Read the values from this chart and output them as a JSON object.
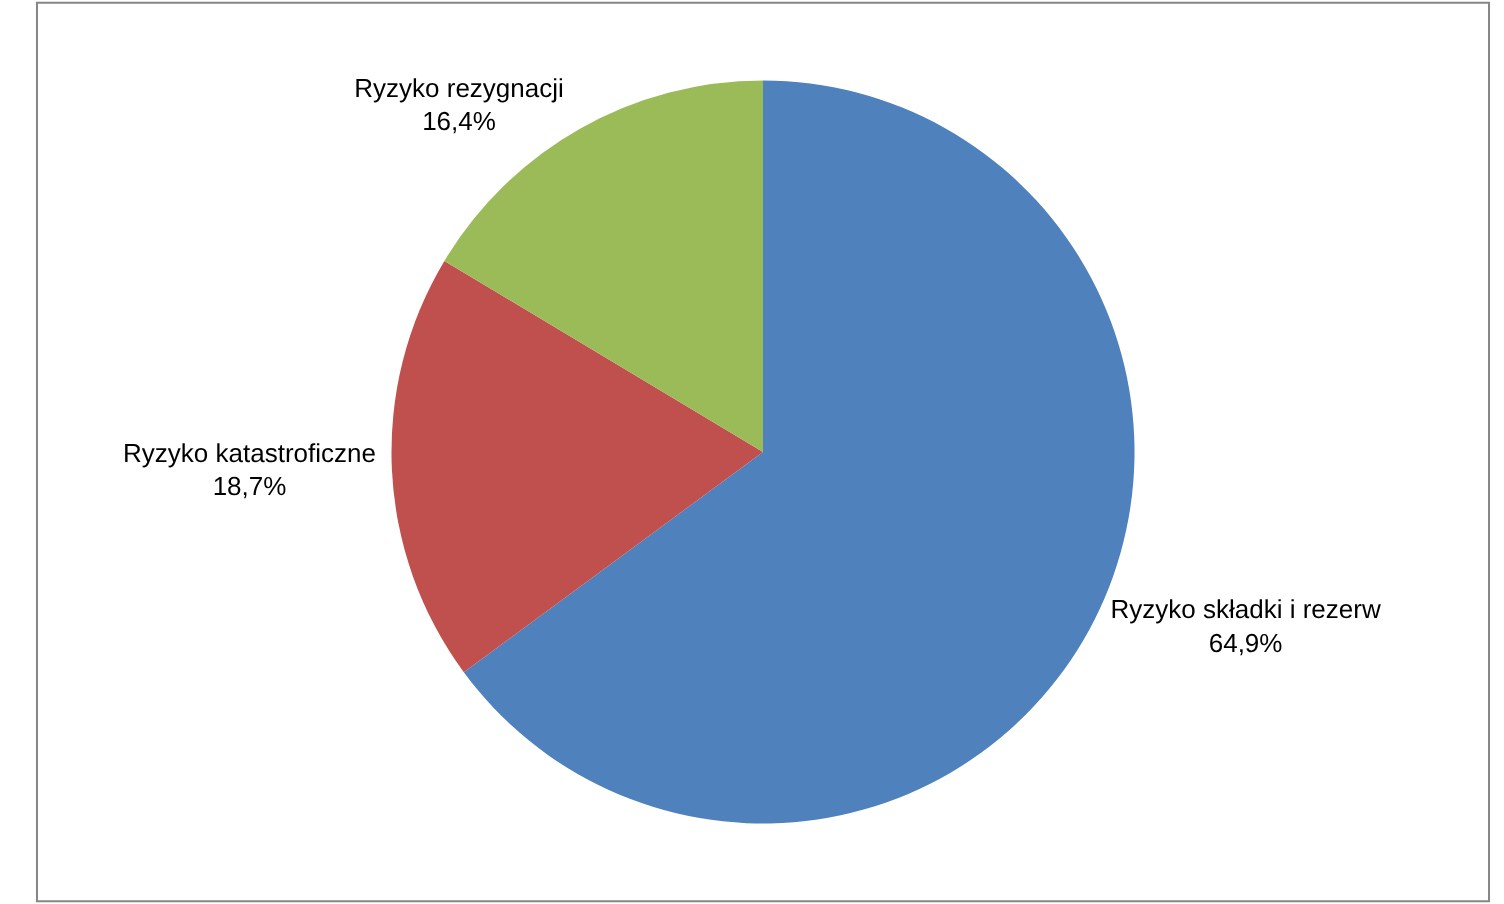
{
  "chart_data": {
    "type": "pie",
    "categories": [
      "Ryzyko składki i rezerw",
      "Ryzyko katastroficzne",
      "Ryzyko rezygnacji"
    ],
    "values": [
      64.9,
      18.7,
      16.4
    ],
    "value_labels": [
      "64,9%",
      "18,7%",
      "16,4%"
    ],
    "colors": [
      "#4f81bd",
      "#c0504d",
      "#9bbb59"
    ],
    "legend": false
  }
}
